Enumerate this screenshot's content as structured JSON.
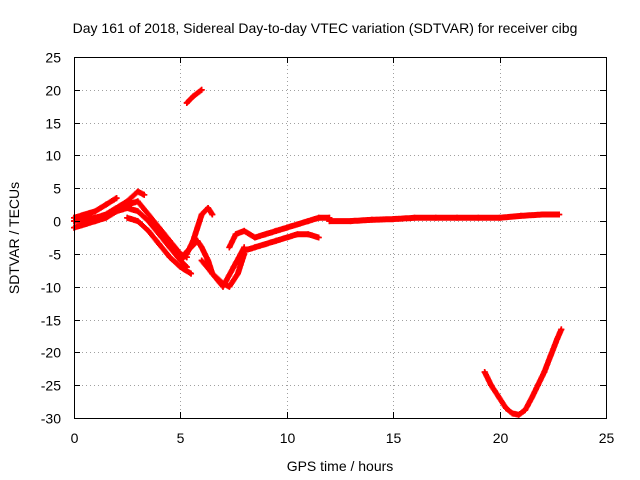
{
  "chart_data": {
    "type": "scatter",
    "title": "Day 161 of 2018, Sidereal Day-to-day VTEC variation (SDTVAR) for receiver cibg",
    "xlabel": "GPS time / hours",
    "ylabel": "SDTVAR / TECUs",
    "xlim": [
      0,
      25
    ],
    "ylim": [
      -30,
      25
    ],
    "grid": true,
    "x_ticks": [
      0,
      5,
      10,
      15,
      20,
      25
    ],
    "y_ticks": [
      -30,
      -25,
      -20,
      -15,
      -10,
      -5,
      0,
      5,
      10,
      15,
      20,
      25
    ],
    "x_tick_labels": [
      "0",
      "5",
      "10",
      "15",
      "20",
      "25"
    ],
    "y_tick_labels": [
      "-30",
      "-25",
      "-20",
      "-15",
      "-10",
      "-5",
      "0",
      "5",
      "10",
      "15",
      "20",
      "25"
    ],
    "marker": "+",
    "series_color": "#ff0000",
    "series": [
      {
        "name": "track-a",
        "x": [
          0,
          0.5,
          1,
          1.5,
          2,
          2.5,
          3,
          3.5,
          4,
          4.5,
          5,
          5.3
        ],
        "y": [
          -1,
          -0.5,
          0,
          0.5,
          1.5,
          2,
          1.5,
          0,
          -2,
          -4,
          -6,
          -7
        ]
      },
      {
        "name": "track-b",
        "x": [
          0,
          0.5,
          1,
          1.5,
          2
        ],
        "y": [
          0.5,
          1,
          1.5,
          2.5,
          3.5
        ]
      },
      {
        "name": "track-c",
        "x": [
          1.5,
          2,
          2.5,
          3,
          3.3
        ],
        "y": [
          1,
          2,
          3,
          4.5,
          4
        ]
      },
      {
        "name": "track-d",
        "x": [
          0,
          0.5,
          1,
          1.5,
          2,
          2.5,
          3,
          3.5,
          4,
          4.5,
          5,
          5.3
        ],
        "y": [
          0,
          0.3,
          0.5,
          1,
          2,
          2.5,
          3,
          1,
          -1,
          -3,
          -5,
          -5.5
        ]
      },
      {
        "name": "track-e",
        "x": [
          2.5,
          3,
          3.5,
          4,
          4.5,
          5,
          5.5
        ],
        "y": [
          0.5,
          0,
          -1.5,
          -3.5,
          -5.5,
          -7,
          -8
        ]
      },
      {
        "name": "track-f",
        "x": [
          5,
          5.3,
          5.6,
          5.8,
          6,
          6.3,
          6.5
        ],
        "y": [
          -6,
          -5,
          -3,
          -1,
          1,
          2,
          1
        ]
      },
      {
        "name": "track-g",
        "x": [
          5.2,
          5.5,
          5.8,
          6,
          6.3,
          6.5,
          7,
          7.5,
          8
        ],
        "y": [
          -5,
          -4,
          -3,
          -4,
          -6,
          -8,
          -10,
          -7,
          -4
        ]
      },
      {
        "name": "track-h",
        "x": [
          6,
          6.5,
          7,
          7.3,
          7.7,
          8
        ],
        "y": [
          -6,
          -8,
          -9.5,
          -10,
          -8,
          -5
        ]
      },
      {
        "name": "track-i",
        "x": [
          7.3,
          7.6,
          8,
          8.5,
          9,
          9.5,
          10,
          10.5,
          11,
          11.5,
          12
        ],
        "y": [
          -4,
          -2,
          -1.5,
          -2.5,
          -2,
          -1.5,
          -1,
          -0.5,
          0,
          0.5,
          0.5
        ]
      },
      {
        "name": "track-j",
        "x": [
          8,
          8.5,
          9,
          9.5,
          10,
          10.5,
          11,
          11.5
        ],
        "y": [
          -4.5,
          -4,
          -3.5,
          -3,
          -2.5,
          -2,
          -2,
          -2.5
        ]
      },
      {
        "name": "track-k",
        "x": [
          5.3,
          5.6,
          6
        ],
        "y": [
          18,
          19,
          20
        ]
      },
      {
        "name": "track-l",
        "x": [
          12,
          13,
          14,
          15,
          16,
          17,
          18,
          19,
          20,
          21,
          22,
          22.8
        ],
        "y": [
          0,
          0,
          0.2,
          0.3,
          0.5,
          0.5,
          0.5,
          0.5,
          0.5,
          0.8,
          1,
          1
        ]
      },
      {
        "name": "track-m",
        "x": [
          19.3,
          19.6,
          20,
          20.3,
          20.6,
          20.9,
          21.2,
          21.5,
          21.8,
          22.1,
          22.4,
          22.7,
          22.9
        ],
        "y": [
          -23,
          -25,
          -27,
          -28.5,
          -29.3,
          -29.5,
          -28.8,
          -27,
          -25,
          -23,
          -20.5,
          -18,
          -16.5
        ]
      }
    ]
  }
}
